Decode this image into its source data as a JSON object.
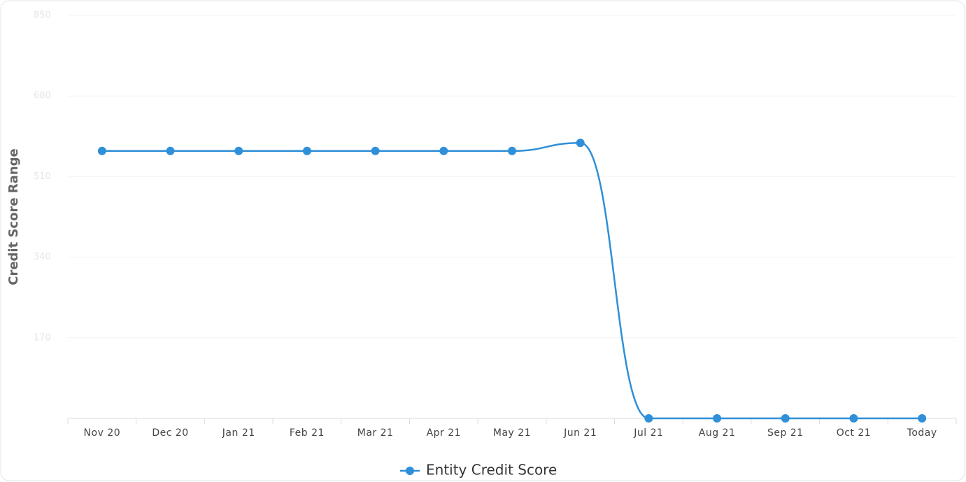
{
  "chart_data": {
    "type": "line",
    "y_label": "Credit Score Range",
    "categories": [
      "Nov 20",
      "Dec 20",
      "Jan 21",
      "Feb 21",
      "Mar 21",
      "Apr 21",
      "May 21",
      "Jun 21",
      "Jul 21",
      "Aug 21",
      "Sep 21",
      "Oct 21",
      "Today"
    ],
    "series": [
      {
        "name": "Entity Credit Score",
        "color": "#2f8fd8",
        "values": [
          564,
          564,
          564,
          564,
          564,
          564,
          564,
          581,
          0,
          0,
          0,
          0,
          0
        ]
      }
    ],
    "ylim": [
      0,
      850
    ],
    "yticks": [
      170,
      340,
      510,
      680,
      850
    ],
    "grid": true
  }
}
